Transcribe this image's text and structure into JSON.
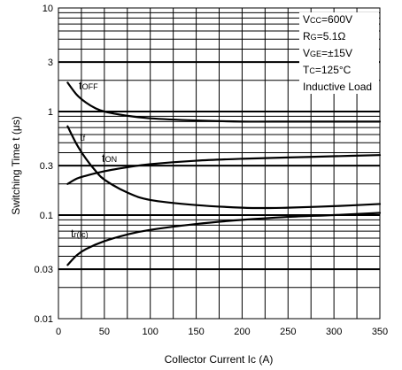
{
  "chart_data": {
    "type": "line",
    "xlabel": "Collector Current Ic  (A)",
    "ylabel": "Switching Time t  (μs)",
    "xlim": [
      0,
      350
    ],
    "ylim": [
      0.01,
      10
    ],
    "y_scale": "log",
    "grid": true,
    "x_ticks": [
      "0",
      "50",
      "100",
      "150",
      "200",
      "250",
      "300",
      "350"
    ],
    "y_ticks": [
      {
        "value": 10,
        "label": "10"
      },
      {
        "value": 3,
        "label": "3"
      },
      {
        "value": 1,
        "label": "1"
      },
      {
        "value": 0.3,
        "label": "0.3"
      },
      {
        "value": 0.1,
        "label": "0.1"
      },
      {
        "value": 0.03,
        "label": "0.03"
      },
      {
        "value": 0.01,
        "label": "0.01"
      }
    ],
    "conditions": {
      "vcc": {
        "main": "V",
        "sub": "CC",
        "rest": "=600V"
      },
      "rg": {
        "main": "R",
        "sub": "G",
        "rest": "=5.1Ω"
      },
      "vge": {
        "main": "V",
        "sub": "GE",
        "rest": "=±15V"
      },
      "tc": {
        "main": "T",
        "sub": "C",
        "rest": "=125°C"
      },
      "load": "Inductive Load"
    },
    "series": [
      {
        "key": "toff",
        "label_main": "t",
        "label_sub": "OFF",
        "x": [
          10,
          20,
          30,
          40,
          50,
          75,
          100,
          150,
          200,
          250,
          300,
          350
        ],
        "values": [
          1.9,
          1.45,
          1.22,
          1.08,
          1.0,
          0.91,
          0.86,
          0.82,
          0.8,
          0.8,
          0.8,
          0.8
        ]
      },
      {
        "key": "tf",
        "label_main": "t",
        "label_sub": "f",
        "x": [
          10,
          20,
          30,
          40,
          50,
          75,
          100,
          150,
          200,
          230,
          250,
          300,
          350
        ],
        "values": [
          0.72,
          0.48,
          0.35,
          0.27,
          0.22,
          0.165,
          0.14,
          0.125,
          0.118,
          0.117,
          0.118,
          0.122,
          0.128
        ]
      },
      {
        "key": "ton",
        "label_main": "t",
        "label_sub": "ON",
        "x": [
          10,
          20,
          30,
          50,
          75,
          100,
          150,
          200,
          250,
          300,
          350
        ],
        "values": [
          0.2,
          0.225,
          0.24,
          0.265,
          0.29,
          0.31,
          0.335,
          0.35,
          0.36,
          0.37,
          0.38
        ]
      },
      {
        "key": "tric",
        "label_main": "t",
        "label_sub": "r(Ic)",
        "x": [
          10,
          20,
          30,
          50,
          75,
          100,
          150,
          200,
          250,
          300,
          350
        ],
        "values": [
          0.033,
          0.041,
          0.047,
          0.056,
          0.065,
          0.072,
          0.082,
          0.09,
          0.096,
          0.1,
          0.105
        ]
      }
    ]
  }
}
